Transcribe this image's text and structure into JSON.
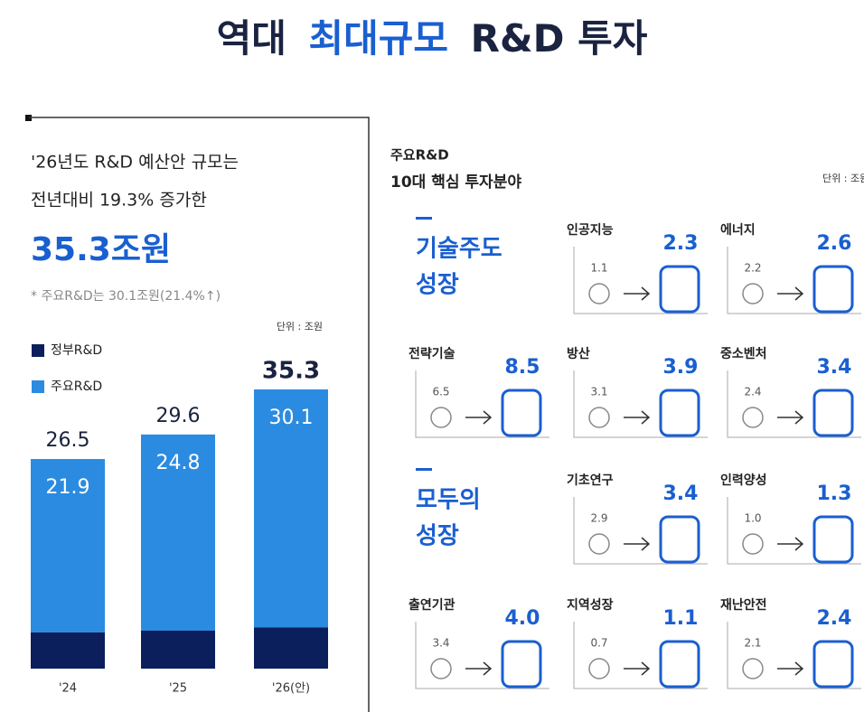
{
  "header": {
    "title_parts": [
      "역대",
      "최대규모",
      "R&D 투자"
    ]
  },
  "left": {
    "intro_lines": [
      "'26년도 R&D 예산안 규모는",
      "전년대비 19.3% 증가한"
    ],
    "headline": "35.3조원",
    "note": "* 주요R&D는 30.1조원(21.4%↑)",
    "unit": "단위 : 조원"
  },
  "chart_data": {
    "type": "stacked-bar",
    "categories": [
      "'24",
      "'25",
      "'26(안)"
    ],
    "series": [
      {
        "name": "정부R&D",
        "color": "#0b1f5c",
        "values": [
          4.6,
          4.8,
          5.2
        ]
      },
      {
        "name": "주요R&D",
        "color": "#2b8be0",
        "values": [
          21.9,
          24.8,
          30.1
        ]
      }
    ],
    "totals": [
      26.5,
      29.6,
      35.3
    ]
  },
  "right": {
    "header_lines": [
      "주요R&D",
      "10대 핵심 투자분야"
    ],
    "unit": "단위 : 조원",
    "groups": [
      {
        "label_lines": [
          "기술주도",
          "성장"
        ]
      },
      {
        "label_lines": [
          "모두의",
          "성장"
        ]
      }
    ],
    "items": [
      {
        "name": "인공지능",
        "before": "1.1",
        "after": "2.3"
      },
      {
        "name": "에너지",
        "before": "2.2",
        "after": "2.6"
      },
      {
        "name": "전략기술",
        "before": "6.5",
        "after": "8.5"
      },
      {
        "name": "방산",
        "before": "3.1",
        "after": "3.9"
      },
      {
        "name": "중소벤처",
        "before": "2.4",
        "after": "3.4"
      },
      {
        "name": "기초연구",
        "before": "2.9",
        "after": "3.4"
      },
      {
        "name": "인력양성",
        "before": "1.0",
        "after": "1.3"
      },
      {
        "name": "출연기관",
        "before": "3.4",
        "after": "4.0"
      },
      {
        "name": "지역성장",
        "before": "0.7",
        "after": "1.1"
      },
      {
        "name": "재난안전",
        "before": "2.1",
        "after": "2.4"
      }
    ]
  }
}
